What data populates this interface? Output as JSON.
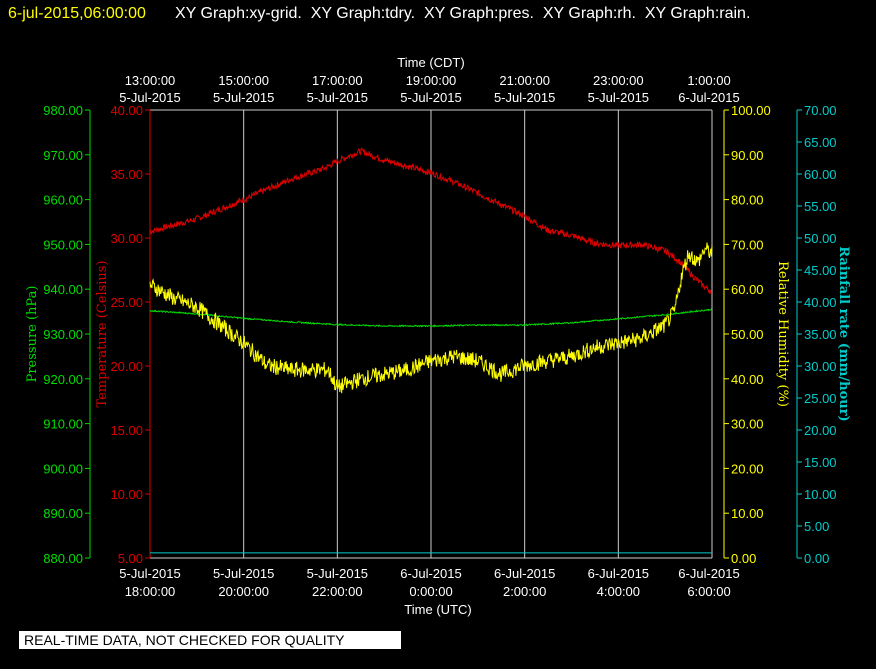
{
  "header": {
    "timestamp": "6-jul-2015,06:00:00",
    "graph_titles": "XY Graph:xy-grid.  XY Graph:tdry.  XY Graph:pres.  XY Graph:rh.  XY Graph:rain."
  },
  "footer_notice": "REAL-TIME DATA, NOT CHECKED FOR QUALITY",
  "colors": {
    "pressure": "#00dd00",
    "temperature": "#dd0000",
    "humidity": "#ffff00",
    "rainfall": "#00cccc",
    "grid": "#cccccc",
    "header_timestamp": "#ffff00"
  },
  "chart_data": {
    "type": "line",
    "x_top_label": "Time (CDT)",
    "x_bottom_label": "Time (UTC)",
    "x_top_ticks": [
      [
        "13:00:00",
        "5-Jul-2015"
      ],
      [
        "15:00:00",
        "5-Jul-2015"
      ],
      [
        "17:00:00",
        "5-Jul-2015"
      ],
      [
        "19:00:00",
        "5-Jul-2015"
      ],
      [
        "21:00:00",
        "5-Jul-2015"
      ],
      [
        "23:00:00",
        "5-Jul-2015"
      ],
      [
        "1:00:00",
        "6-Jul-2015"
      ]
    ],
    "x_bottom_ticks": [
      [
        "5-Jul-2015",
        "18:00:00"
      ],
      [
        "5-Jul-2015",
        "20:00:00"
      ],
      [
        "5-Jul-2015",
        "22:00:00"
      ],
      [
        "6-Jul-2015",
        "0:00:00"
      ],
      [
        "6-Jul-2015",
        "2:00:00"
      ],
      [
        "6-Jul-2015",
        "4:00:00"
      ],
      [
        "6-Jul-2015",
        "6:00:00"
      ]
    ],
    "x_range_utc": [
      "5-Jul-2015 18:00:00",
      "6-Jul-2015 6:00:00"
    ],
    "grid": true,
    "axes": {
      "pressure": {
        "label": "Pressure (hPa)",
        "range": [
          880,
          980
        ],
        "ticks": [
          "880.00",
          "890.00",
          "900.00",
          "910.00",
          "920.00",
          "930.00",
          "940.00",
          "950.00",
          "960.00",
          "970.00",
          "980.00"
        ]
      },
      "temperature": {
        "label": "Temperature (Celsius)",
        "range": [
          5,
          40
        ],
        "ticks": [
          "5.00",
          "10.00",
          "15.00",
          "20.00",
          "25.00",
          "30.00",
          "35.00",
          "40.00"
        ]
      },
      "humidity": {
        "label": "Relative Humidity (%)",
        "range": [
          0,
          100
        ],
        "ticks": [
          "0.00",
          "10.00",
          "20.00",
          "30.00",
          "40.00",
          "50.00",
          "60.00",
          "70.00",
          "80.00",
          "90.00",
          "100.00"
        ]
      },
      "rainfall": {
        "label": "Rainfall rate (mm/hour)",
        "range": [
          0,
          70
        ],
        "ticks": [
          "0.00",
          "5.00",
          "10.00",
          "15.00",
          "20.00",
          "25.00",
          "30.00",
          "35.00",
          "40.00",
          "45.00",
          "50.00",
          "55.00",
          "60.00",
          "65.00",
          "70.00"
        ]
      }
    },
    "series": [
      {
        "name": "tdry",
        "axis": "temperature",
        "x_hours": [
          0,
          1,
          2,
          3,
          3.7,
          4,
          4.5,
          5,
          5.5,
          6,
          6.6,
          7,
          7.5,
          8,
          8.5,
          9,
          9.5,
          10,
          10.5,
          11,
          11.3,
          11.6,
          11.8,
          12
        ],
        "values": [
          30.5,
          31.5,
          33.0,
          34.6,
          35.4,
          36.0,
          36.8,
          36.1,
          35.6,
          35.1,
          34.2,
          33.5,
          32.6,
          31.7,
          30.6,
          30.2,
          29.6,
          29.4,
          29.5,
          29.0,
          28.2,
          27.0,
          26.3,
          25.8
        ]
      },
      {
        "name": "pres",
        "axis": "pressure",
        "x_hours": [
          0,
          1,
          2,
          3,
          4,
          5,
          6,
          7,
          8,
          9,
          10,
          11,
          12
        ],
        "values": [
          935.2,
          934.5,
          933.5,
          932.7,
          932.1,
          931.8,
          931.8,
          932.0,
          932.0,
          932.5,
          933.4,
          934.3,
          935.5
        ]
      },
      {
        "name": "rh",
        "axis": "humidity",
        "x_hours": [
          0,
          0.5,
          1,
          1.5,
          2,
          2.5,
          3,
          3.5,
          3.8,
          4,
          4.5,
          5,
          5.5,
          6,
          6.5,
          7,
          7.5,
          8,
          8.5,
          9,
          9.5,
          10,
          10.5,
          11,
          11.2,
          11.35,
          11.5,
          11.7,
          11.85,
          12
        ],
        "values": [
          61,
          58,
          56,
          52,
          48,
          43,
          42,
          42,
          42,
          38,
          40,
          41,
          42,
          44,
          45,
          44,
          41,
          43,
          44,
          45,
          47,
          48,
          49,
          52,
          55,
          63,
          68,
          66,
          69,
          68
        ]
      },
      {
        "name": "rain",
        "axis": "rainfall",
        "x_hours": [
          0,
          12
        ],
        "values": [
          0.8,
          0.8
        ]
      }
    ]
  }
}
